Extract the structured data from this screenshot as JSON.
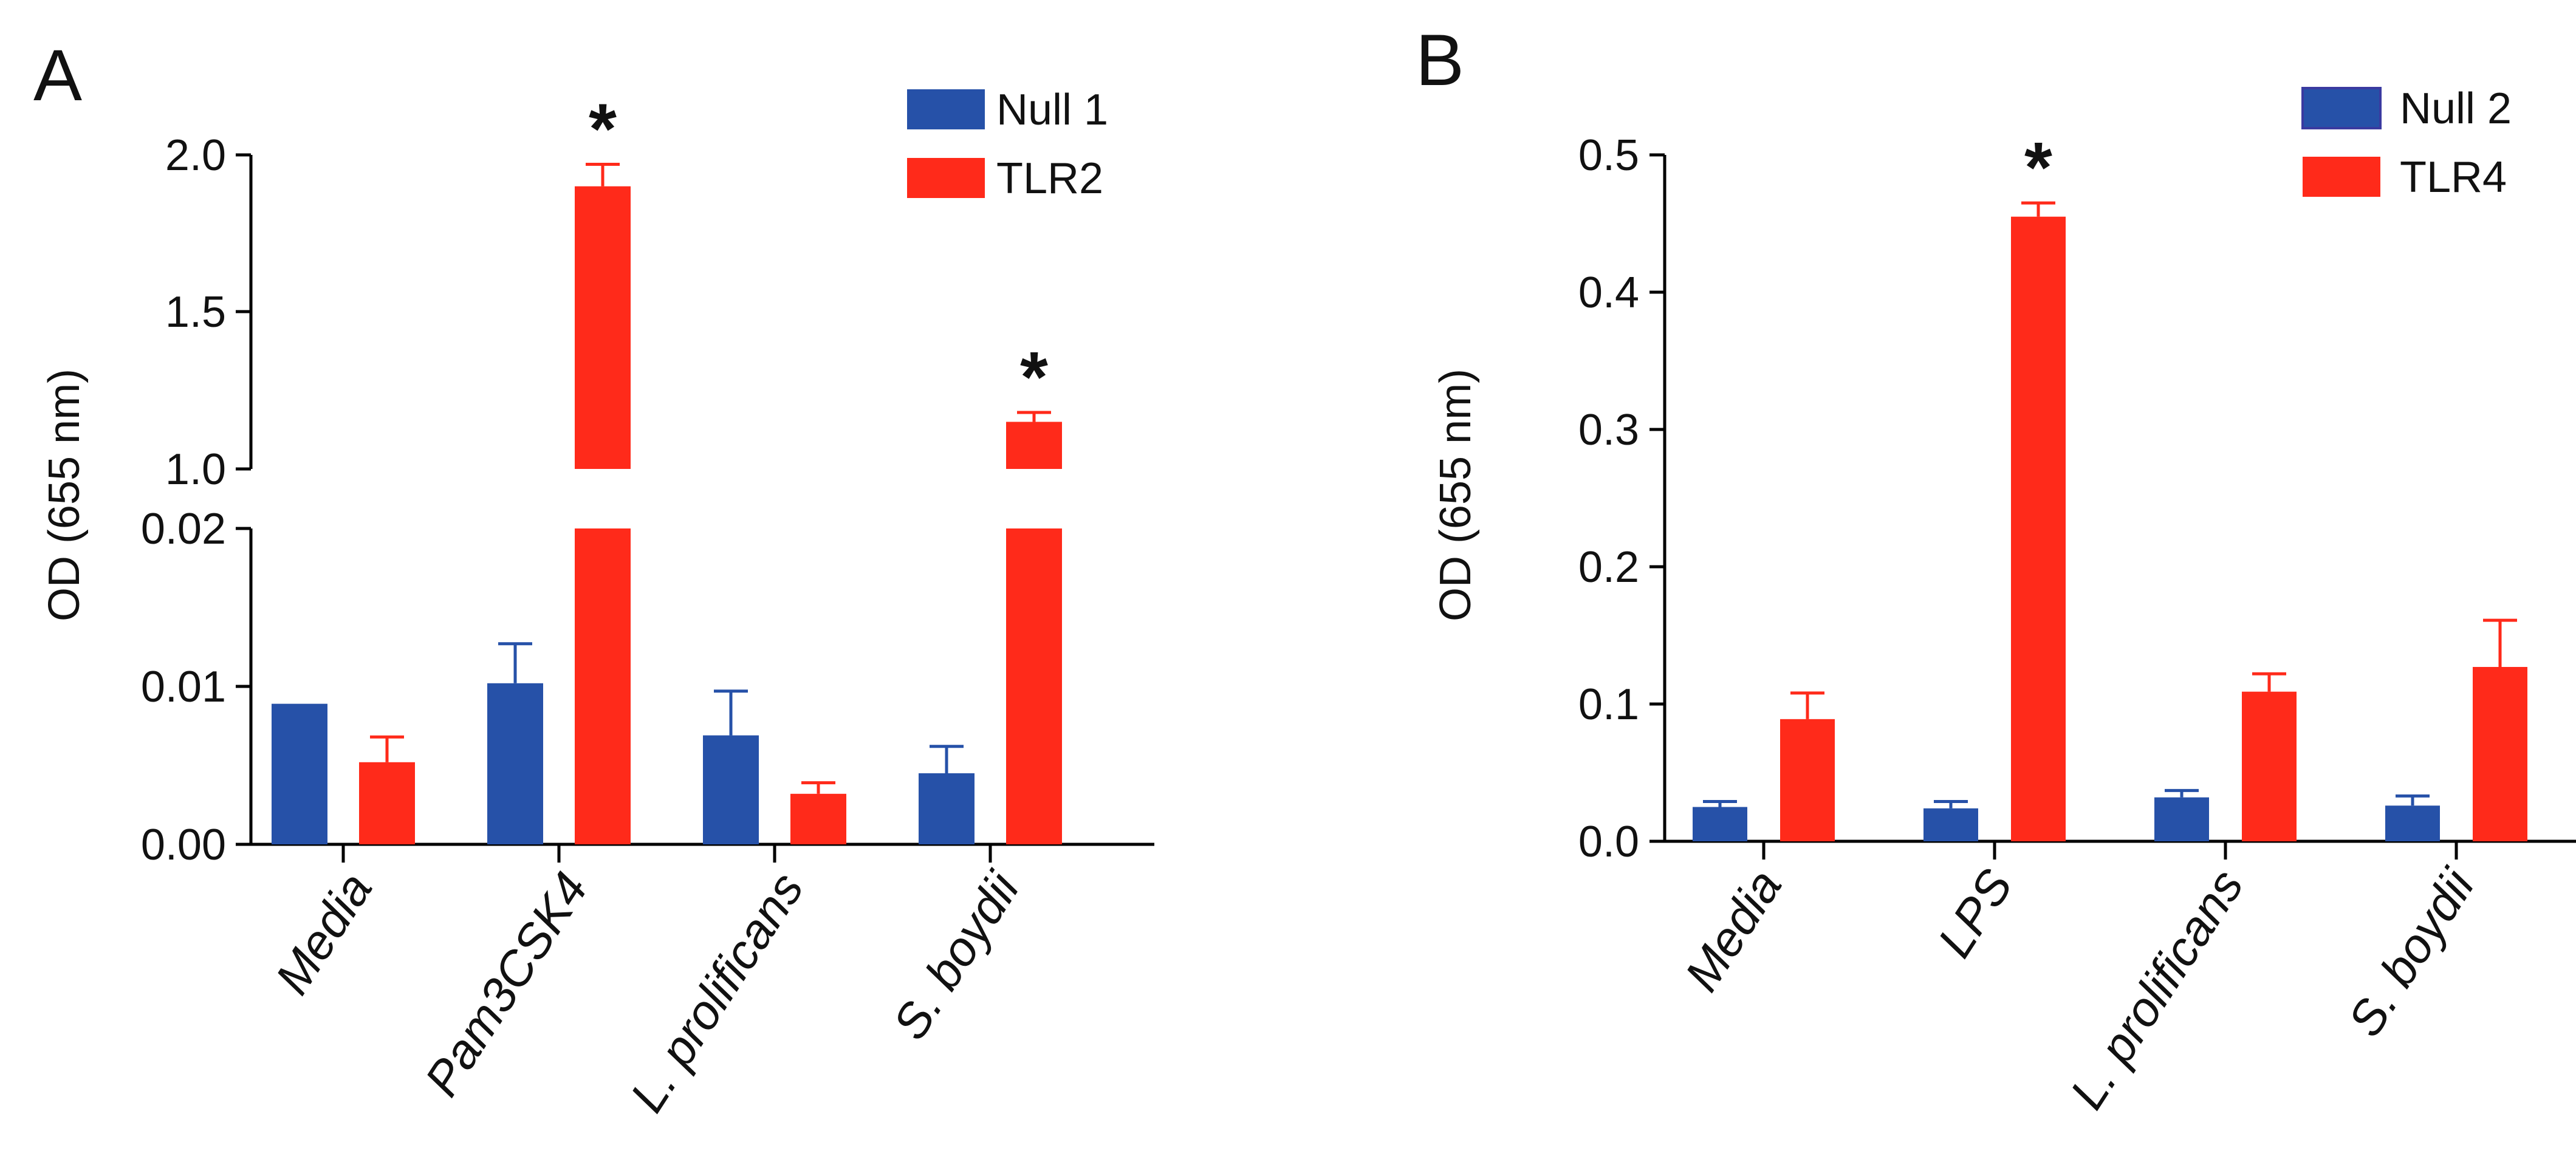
{
  "figure": {
    "panels": [
      "A",
      "B"
    ]
  },
  "chart_data": [
    {
      "panel_label": "A",
      "type": "bar",
      "title": "",
      "xlabel": "",
      "ylabel": "OD (655 nm)",
      "axis_break": {
        "lower_range": [
          0,
          0.02
        ],
        "upper_range": [
          1.0,
          2.0
        ]
      },
      "y_ticks_lower": [
        "0.00",
        "0.01",
        "0.02"
      ],
      "y_ticks_upper": [
        "1.0",
        "1.5",
        "2.0"
      ],
      "categories": [
        "Media",
        "Pam3CSK4",
        "L. prolificans",
        "S. boydii"
      ],
      "series": [
        {
          "name": "Null 1",
          "color": "#2651A8",
          "values": [
            0.0089,
            0.0102,
            0.0069,
            0.0045
          ],
          "errors": [
            0,
            0.0025,
            0.0028,
            0.0017
          ]
        },
        {
          "name": "TLR2",
          "color": "#FF2A1A",
          "values": [
            0.0052,
            1.9,
            0.0032,
            1.15
          ],
          "errors": [
            0.0016,
            0.07,
            0.0007,
            0.03
          ]
        }
      ],
      "significance": [
        {
          "category_index": 1,
          "series_index": 1,
          "label": "*"
        },
        {
          "category_index": 3,
          "series_index": 1,
          "label": "*"
        }
      ],
      "legend_position": "top-right",
      "grid": false
    },
    {
      "panel_label": "B",
      "type": "bar",
      "title": "",
      "xlabel": "",
      "ylabel": "OD (655 nm)",
      "ylim": [
        0,
        0.5
      ],
      "y_ticks": [
        "0.0",
        "0.1",
        "0.2",
        "0.3",
        "0.4",
        "0.5"
      ],
      "categories": [
        "Media",
        "LPS",
        "L. prolificans",
        "S. boydii"
      ],
      "series": [
        {
          "name": "Null 2",
          "color": "#2651A8",
          "values": [
            0.025,
            0.024,
            0.032,
            0.026
          ],
          "errors": [
            0.004,
            0.005,
            0.005,
            0.007
          ]
        },
        {
          "name": "TLR4",
          "color": "#FF2A1A",
          "values": [
            0.089,
            0.455,
            0.109,
            0.127
          ],
          "errors": [
            0.019,
            0.01,
            0.013,
            0.034
          ]
        }
      ],
      "significance": [
        {
          "category_index": 1,
          "series_index": 1,
          "label": "*"
        }
      ],
      "legend_position": "top-right",
      "grid": false
    }
  ]
}
